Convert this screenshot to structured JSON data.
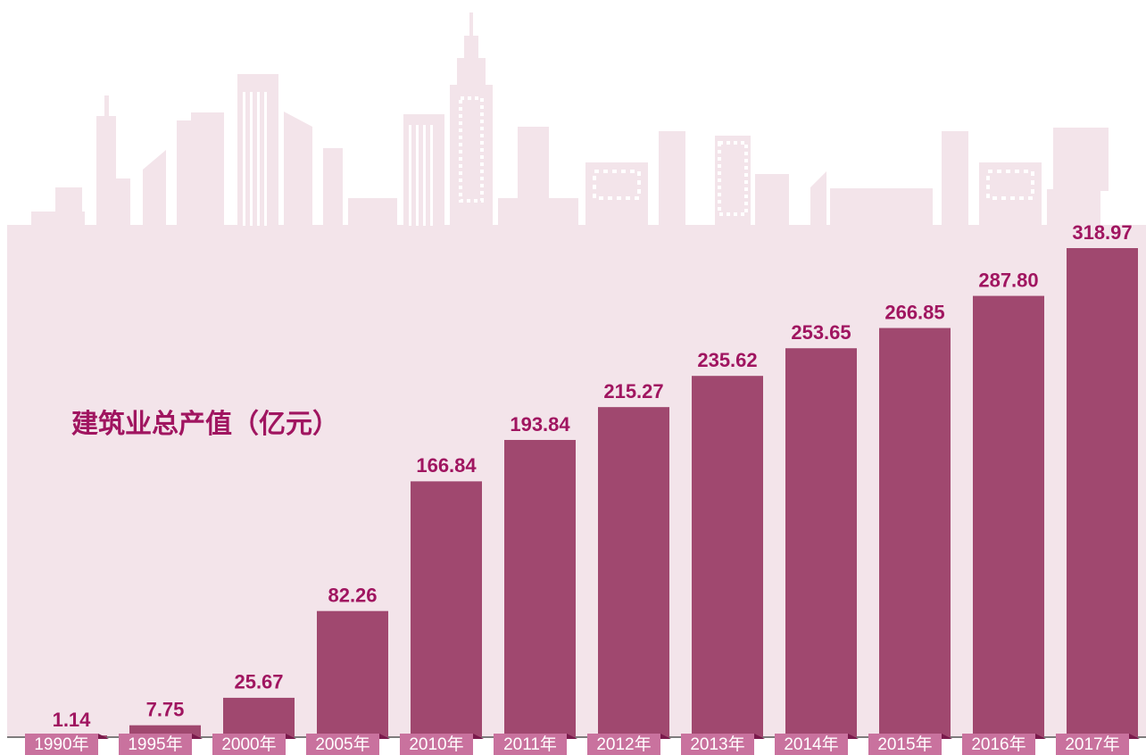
{
  "chart_data": {
    "type": "bar",
    "title": "建筑业总产值（亿元）",
    "categories": [
      "1990年",
      "1995年",
      "2000年",
      "2005年",
      "2010年",
      "2011年",
      "2012年",
      "2013年",
      "2014年",
      "2015年",
      "2016年",
      "2017年"
    ],
    "values": [
      1.14,
      7.75,
      25.67,
      82.26,
      166.84,
      193.84,
      215.27,
      235.62,
      253.65,
      266.85,
      287.8,
      318.97
    ],
    "value_labels": [
      "1.14",
      "7.75",
      "25.67",
      "82.26",
      "166.84",
      "193.84",
      "215.27",
      "235.62",
      "253.65",
      "266.85",
      "287.80",
      "318.97"
    ],
    "color": "#a0486f"
  }
}
